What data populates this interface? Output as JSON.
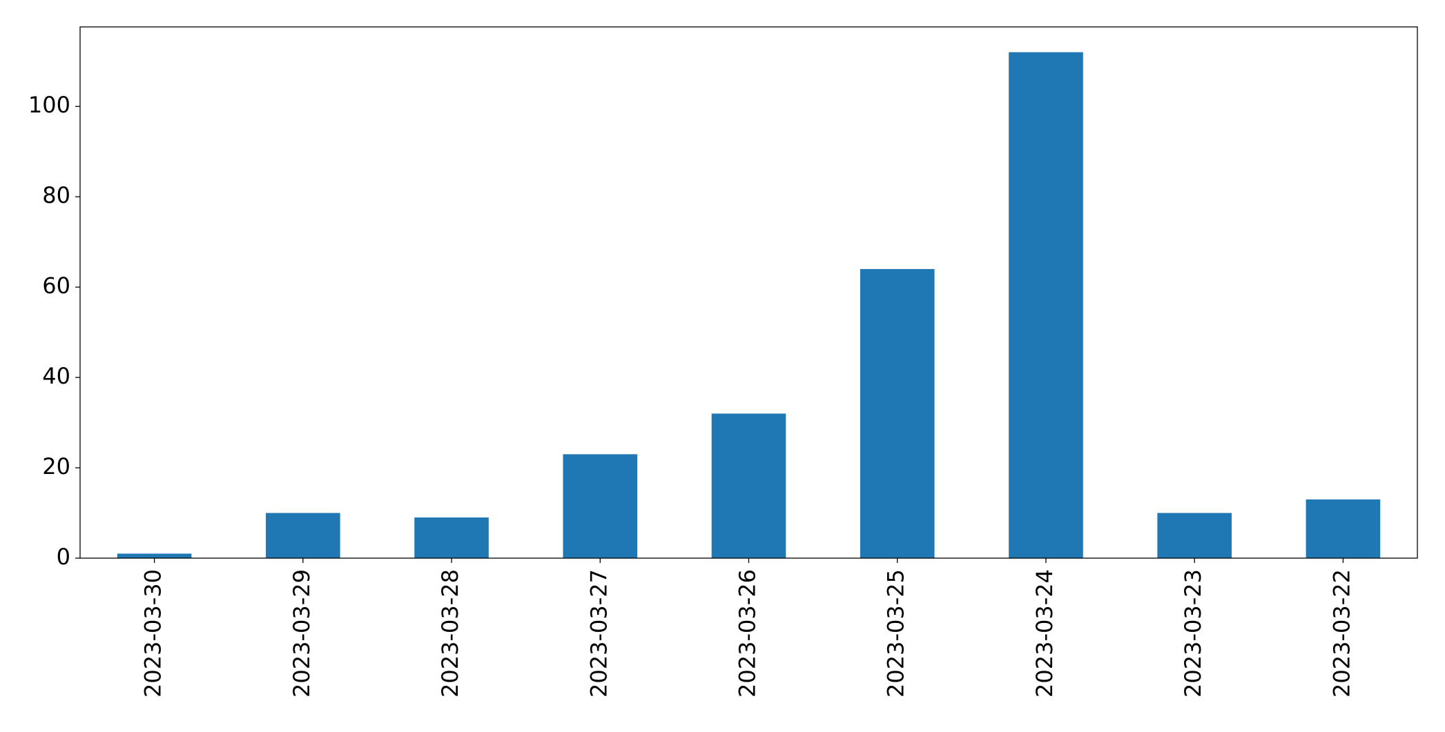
{
  "chart_data": {
    "type": "bar",
    "categories": [
      "2023-03-30",
      "2023-03-29",
      "2023-03-28",
      "2023-03-27",
      "2023-03-26",
      "2023-03-25",
      "2023-03-24",
      "2023-03-23",
      "2023-03-22"
    ],
    "values": [
      1,
      10,
      9,
      23,
      32,
      64,
      112,
      10,
      13
    ],
    "color": "#1f77b4",
    "ylim": [
      0,
      117.6
    ],
    "yticks": [
      0,
      20,
      40,
      60,
      80,
      100
    ],
    "grid": false
  }
}
